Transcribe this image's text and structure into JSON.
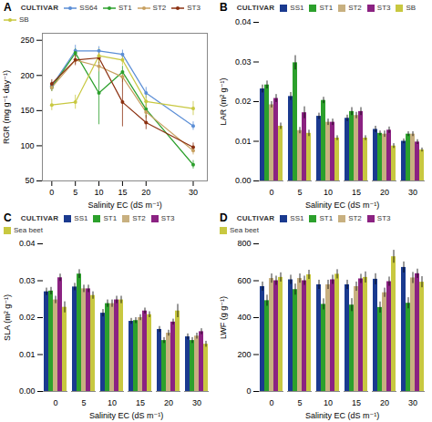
{
  "chart_data": [
    {
      "type": "line",
      "title": "A",
      "x": [
        0,
        5,
        10,
        15,
        20,
        30
      ],
      "xlabel": "Salinity EC (dS m⁻¹)",
      "ylabel": "RGR (mg g⁻¹ day⁻¹)",
      "xlim": [
        -2,
        33
      ],
      "xticks": [
        0,
        5,
        10,
        15,
        20,
        30
      ],
      "ylim": [
        50,
        260
      ],
      "yticks": [
        50,
        100,
        150,
        200,
        250
      ],
      "grid": false,
      "legend": "top",
      "legend_title": "CULTIVAR",
      "marker": "circle",
      "series": [
        {
          "name": "SS64",
          "color": "#5b8ed6",
          "values": [
            185,
            235,
            235,
            230,
            175,
            128
          ],
          "errors": [
            6,
            8,
            6,
            6,
            8,
            6
          ]
        },
        {
          "name": "ST1",
          "color": "#2ca02c",
          "values": [
            183,
            232,
            175,
            205,
            152,
            73
          ],
          "errors": [
            6,
            6,
            45,
            8,
            12,
            6
          ]
        },
        {
          "name": "ST2",
          "color": "#c8a060",
          "values": [
            183,
            222,
            213,
            198,
            148,
            93
          ],
          "errors": [
            6,
            6,
            8,
            8,
            10,
            6
          ]
        },
        {
          "name": "ST3",
          "color": "#8b3010",
          "values": [
            188,
            222,
            225,
            162,
            133,
            98
          ],
          "errors": [
            6,
            8,
            8,
            35,
            10,
            6
          ]
        },
        {
          "name": "SB",
          "color": "#c8c840",
          "values": [
            158,
            162,
            228,
            222,
            163,
            153
          ],
          "errors": [
            8,
            10,
            10,
            8,
            10,
            10
          ]
        }
      ]
    },
    {
      "type": "bar",
      "title": "B",
      "categories": [
        "0",
        "5",
        "10",
        "15",
        "20",
        "30"
      ],
      "xlabel": "Salinity EC (dS m⁻¹)",
      "ylabel": "LAR (m² g⁻¹)",
      "ylim": [
        0,
        0.04
      ],
      "yticks": [
        {
          "value": 0,
          "label": "0.00"
        },
        0.01,
        0.02,
        0.03,
        0.04
      ],
      "grid": false,
      "legend": "top",
      "legend_title": "CULTIVAR",
      "series": [
        {
          "name": "SS1",
          "color": "#1a3a8f",
          "values": [
            0.0232,
            0.0213,
            0.0163,
            0.0158,
            0.013,
            0.01
          ],
          "errors": [
            0.001,
            0.001,
            0.0008,
            0.0008,
            0.0008,
            0.0006
          ]
        },
        {
          "name": "ST1",
          "color": "#2ca02c",
          "values": [
            0.0242,
            0.0298,
            0.0203,
            0.0175,
            0.012,
            0.0118
          ],
          "errors": [
            0.001,
            0.0018,
            0.0008,
            0.001,
            0.0006,
            0.0006
          ]
        },
        {
          "name": "ST2",
          "color": "#c8b080",
          "values": [
            0.0192,
            0.0127,
            0.0148,
            0.0165,
            0.0118,
            0.0118
          ],
          "errors": [
            0.0008,
            0.0008,
            0.0008,
            0.0008,
            0.0008,
            0.0006
          ]
        },
        {
          "name": "ST3",
          "color": "#8b2282",
          "values": [
            0.0208,
            0.0172,
            0.0148,
            0.0175,
            0.0128,
            0.0098
          ],
          "errors": [
            0.001,
            0.0015,
            0.0008,
            0.001,
            0.0008,
            0.0006
          ]
        },
        {
          "name": "SB",
          "color": "#c8c840",
          "values": [
            0.0138,
            0.012,
            0.0108,
            0.0108,
            0.0088,
            0.0078
          ],
          "errors": [
            0.0008,
            0.0008,
            0.0006,
            0.0006,
            0.0006,
            0.0005
          ]
        }
      ]
    },
    {
      "type": "bar",
      "title": "C",
      "categories": [
        "0",
        "5",
        "10",
        "15",
        "20",
        "30"
      ],
      "xlabel": "Salinity EC (dS m⁻¹)",
      "ylabel": "SLA (m² g⁻¹)",
      "ylim": [
        0,
        0.04
      ],
      "yticks": [
        {
          "value": 0,
          "label": "0.00"
        },
        0.01,
        0.02,
        0.03,
        0.04
      ],
      "grid": false,
      "legend": "top",
      "legend_title": "CULTIVAR",
      "series": [
        {
          "name": "SS1",
          "color": "#1a3a8f",
          "values": [
            0.027,
            0.0283,
            0.0212,
            0.019,
            0.0168,
            0.0148
          ],
          "errors": [
            0.001,
            0.001,
            0.001,
            0.0008,
            0.0008,
            0.0008
          ]
        },
        {
          "name": "ST1",
          "color": "#2ca02c",
          "values": [
            0.0272,
            0.0318,
            0.0238,
            0.0192,
            0.0138,
            0.0138
          ],
          "errors": [
            0.001,
            0.0012,
            0.001,
            0.0008,
            0.0008,
            0.0008
          ]
        },
        {
          "name": "ST2",
          "color": "#c8b080",
          "values": [
            0.0248,
            0.0278,
            0.0238,
            0.02,
            0.0158,
            0.015
          ],
          "errors": [
            0.001,
            0.001,
            0.001,
            0.0008,
            0.0008,
            0.0008
          ]
        },
        {
          "name": "ST3",
          "color": "#8b2282",
          "values": [
            0.0308,
            0.0278,
            0.0248,
            0.0218,
            0.0188,
            0.0162
          ],
          "errors": [
            0.001,
            0.001,
            0.001,
            0.0008,
            0.0008,
            0.0008
          ]
        },
        {
          "name": "Sea beet",
          "color": "#c8c840",
          "values": [
            0.0228,
            0.026,
            0.0248,
            0.0208,
            0.0218,
            0.0128
          ],
          "errors": [
            0.0015,
            0.001,
            0.001,
            0.0008,
            0.0018,
            0.0008
          ]
        }
      ]
    },
    {
      "type": "bar",
      "title": "D",
      "categories": [
        "0",
        "5",
        "10",
        "15",
        "20",
        "30"
      ],
      "xlabel": "Salinity EC (dS m⁻¹)",
      "ylabel": "LWF (g g⁻¹)",
      "ylim": [
        0,
        800
      ],
      "yticks": [
        0,
        200,
        400,
        600,
        800
      ],
      "grid": false,
      "legend": "top",
      "legend_title": "CULTIVAR",
      "series": [
        {
          "name": "SS1",
          "color": "#1a3a8f",
          "values": [
            568,
            605,
            578,
            578,
            608,
            672
          ],
          "errors": [
            25,
            25,
            25,
            25,
            30,
            30
          ]
        },
        {
          "name": "ST1",
          "color": "#2ca02c",
          "values": [
            492,
            552,
            472,
            468,
            455,
            478
          ],
          "errors": [
            30,
            30,
            30,
            35,
            30,
            30
          ]
        },
        {
          "name": "ST2",
          "color": "#c8b080",
          "values": [
            612,
            612,
            578,
            568,
            535,
            615
          ],
          "errors": [
            25,
            25,
            25,
            25,
            25,
            30
          ]
        },
        {
          "name": "ST3",
          "color": "#8b2282",
          "values": [
            600,
            600,
            605,
            610,
            595,
            638
          ],
          "errors": [
            25,
            25,
            25,
            25,
            25,
            25
          ]
        },
        {
          "name": "Sea beet",
          "color": "#c8c840",
          "values": [
            618,
            632,
            635,
            618,
            730,
            592
          ],
          "errors": [
            25,
            25,
            25,
            30,
            35,
            30
          ]
        }
      ]
    }
  ]
}
